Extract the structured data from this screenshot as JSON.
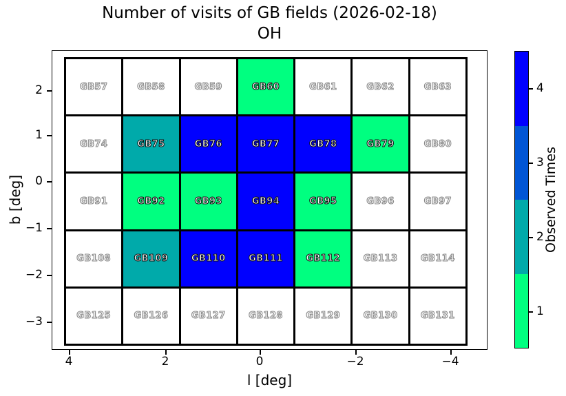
{
  "figure": {
    "title_line1": "Number of visits of GB fields (2026-02-18)",
    "title_line2": "OH"
  },
  "chart_data": {
    "type": "heatmap",
    "title": "Number of visits of GB fields (2026-02-18) OH",
    "xlabel": "l [deg]",
    "ylabel": "b [deg]",
    "x_tick_labels": [
      "4",
      "2",
      "0",
      "−2",
      "−4"
    ],
    "y_tick_labels": [
      "2",
      "1",
      "0",
      "−1",
      "−2",
      "−3"
    ],
    "grid": {
      "columns": 7,
      "rows": 5
    },
    "colorbar": {
      "label": "Observed Times",
      "tick_labels": [
        "4",
        "3",
        "2",
        "1"
      ],
      "segments_top_to_bottom": [
        {
          "value": 4,
          "color": "#0000FF"
        },
        {
          "value": 3,
          "color": "#0055D5"
        },
        {
          "value": 2,
          "color": "#00AAAA"
        },
        {
          "value": 1,
          "color": "#00FF80"
        }
      ]
    },
    "value_colors": {
      "0": "#FFFFFF",
      "1": "#00FF80",
      "2": "#00AAAA",
      "3": "#0055D5",
      "4": "#0000FF"
    },
    "rows": [
      {
        "fields": [
          {
            "name": "GB57",
            "visits": 0
          },
          {
            "name": "GB58",
            "visits": 0
          },
          {
            "name": "GB59",
            "visits": 0
          },
          {
            "name": "GB60",
            "visits": 1
          },
          {
            "name": "GB61",
            "visits": 0
          },
          {
            "name": "GB62",
            "visits": 0
          },
          {
            "name": "GB63",
            "visits": 0
          }
        ]
      },
      {
        "fields": [
          {
            "name": "GB74",
            "visits": 0
          },
          {
            "name": "GB75",
            "visits": 2
          },
          {
            "name": "GB76",
            "visits": 4
          },
          {
            "name": "GB77",
            "visits": 4
          },
          {
            "name": "GB78",
            "visits": 4
          },
          {
            "name": "GB79",
            "visits": 1
          },
          {
            "name": "GB80",
            "visits": 0
          }
        ]
      },
      {
        "fields": [
          {
            "name": "GB91",
            "visits": 0
          },
          {
            "name": "GB92",
            "visits": 1
          },
          {
            "name": "GB93",
            "visits": 1
          },
          {
            "name": "GB94",
            "visits": 4
          },
          {
            "name": "GB95",
            "visits": 1
          },
          {
            "name": "GB96",
            "visits": 0
          },
          {
            "name": "GB97",
            "visits": 0
          }
        ]
      },
      {
        "fields": [
          {
            "name": "GB108",
            "visits": 0
          },
          {
            "name": "GB109",
            "visits": 2
          },
          {
            "name": "GB110",
            "visits": 4
          },
          {
            "name": "GB111",
            "visits": 4
          },
          {
            "name": "GB112",
            "visits": 1
          },
          {
            "name": "GB113",
            "visits": 0
          },
          {
            "name": "GB114",
            "visits": 0
          }
        ]
      },
      {
        "fields": [
          {
            "name": "GB125",
            "visits": 0
          },
          {
            "name": "GB126",
            "visits": 0
          },
          {
            "name": "GB127",
            "visits": 0
          },
          {
            "name": "GB128",
            "visits": 0
          },
          {
            "name": "GB129",
            "visits": 0
          },
          {
            "name": "GB130",
            "visits": 0
          },
          {
            "name": "GB131",
            "visits": 0
          }
        ]
      }
    ]
  }
}
